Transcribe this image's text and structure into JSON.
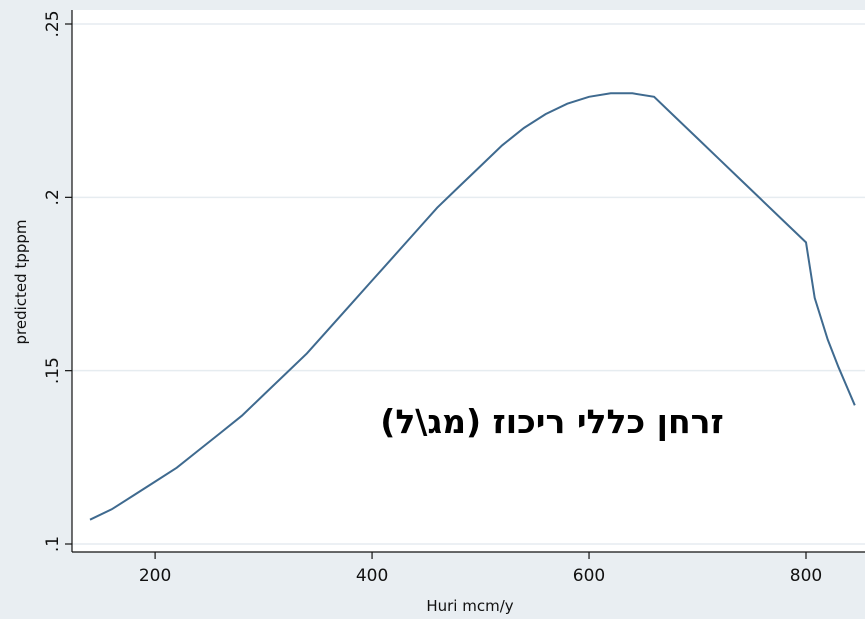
{
  "chart_data": {
    "type": "line",
    "xlabel": "Huri mcm/y",
    "ylabel": "predicted tpppm",
    "xlim": [
      130,
      845
    ],
    "ylim": [
      0.1,
      0.25
    ],
    "xticks": [
      200,
      400,
      600,
      800
    ],
    "xtick_labels": [
      "200",
      "400",
      "600",
      "800"
    ],
    "yticks": [
      0.1,
      0.15,
      0.2,
      0.25
    ],
    "ytick_labels": [
      ".1",
      ".15",
      ".2",
      ".25"
    ],
    "grid": true,
    "annotation": "זרחן כללי ריכוז (מג\\ל)",
    "colors": {
      "line": "#3f6a8f",
      "plot_bg": "#ffffff",
      "page_bg": "#e9eef2",
      "grid": "#e6ecf0"
    },
    "series": [
      {
        "x": [
          140,
          160,
          180,
          200,
          220,
          240,
          260,
          280,
          300,
          320,
          340,
          360,
          380,
          400,
          420,
          440,
          460,
          480,
          500,
          520,
          540,
          560,
          580,
          600,
          620,
          640,
          660,
          680,
          700,
          720,
          740,
          760,
          780,
          800,
          808,
          820,
          830,
          845
        ],
        "y": [
          0.107,
          0.11,
          0.114,
          0.118,
          0.122,
          0.127,
          0.132,
          0.137,
          0.143,
          0.149,
          0.155,
          0.162,
          0.169,
          0.176,
          0.183,
          0.19,
          0.197,
          0.203,
          0.209,
          0.215,
          0.22,
          0.224,
          0.227,
          0.229,
          0.23,
          0.23,
          0.229,
          0.223,
          0.217,
          0.211,
          0.205,
          0.199,
          0.193,
          0.187,
          0.171,
          0.159,
          0.151,
          0.14
        ]
      }
    ]
  }
}
